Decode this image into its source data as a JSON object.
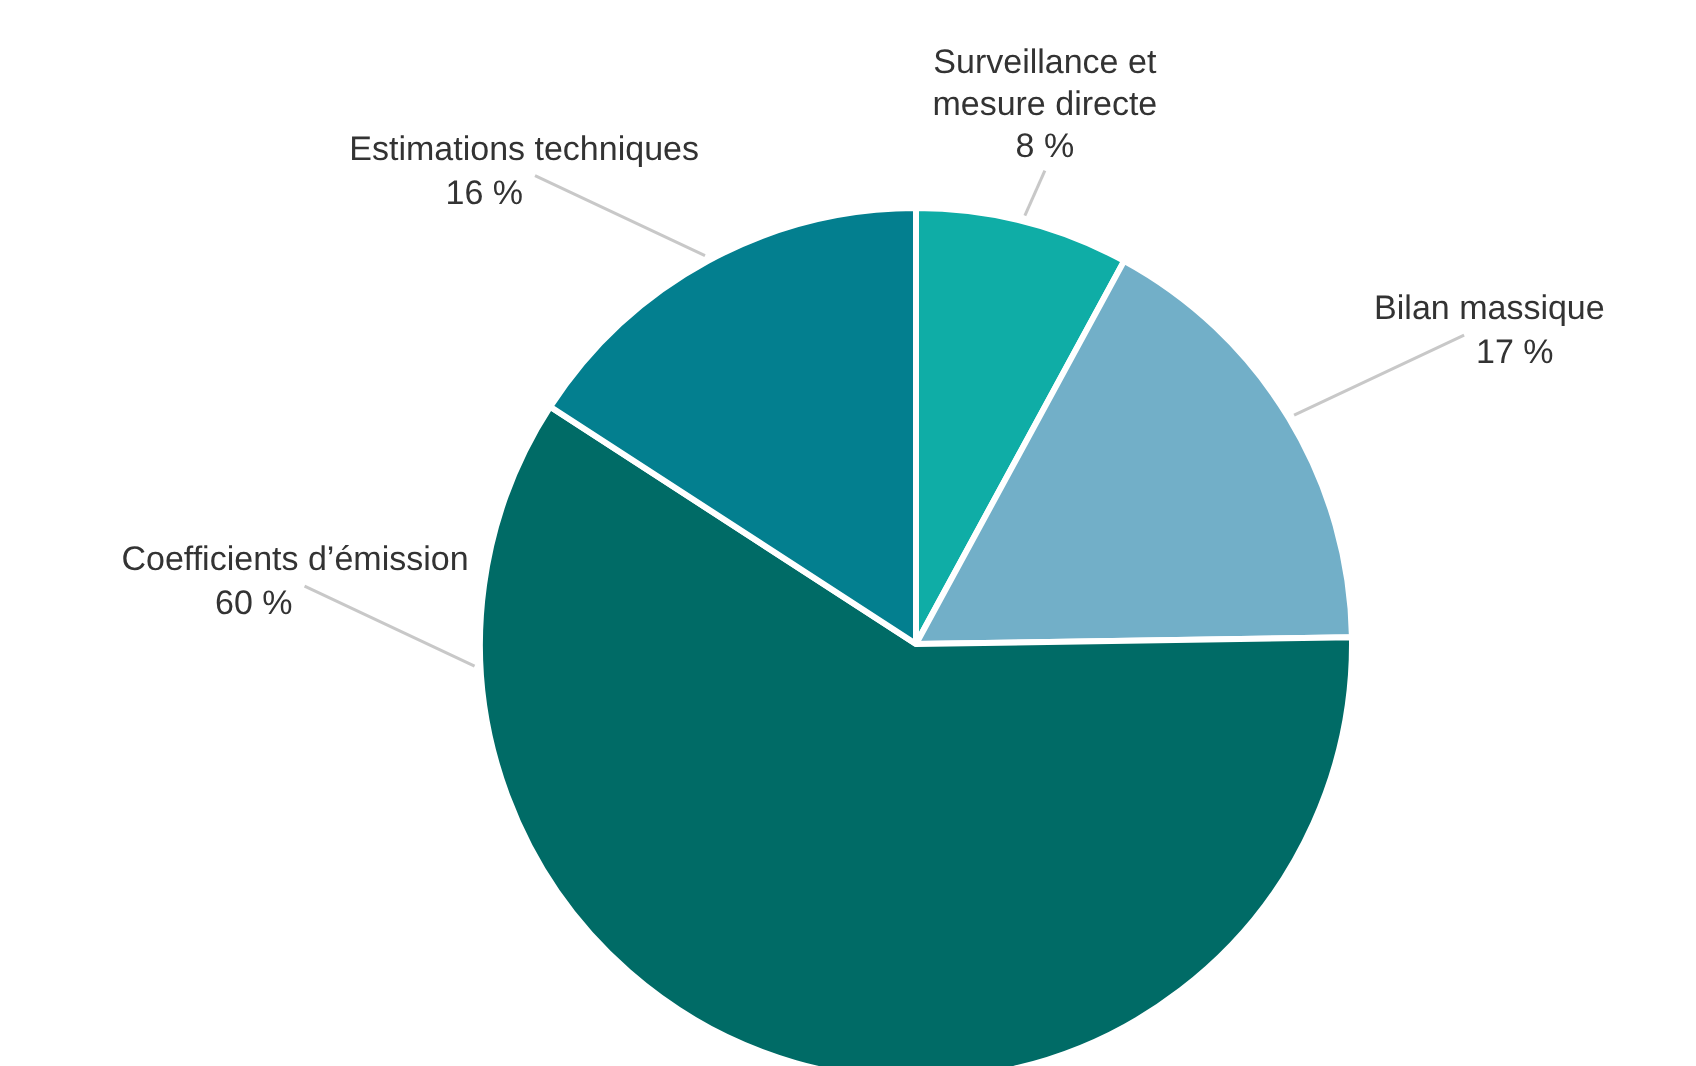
{
  "chart_data": {
    "type": "pie",
    "categories": [
      "Surveillance et mesure directe",
      "Bilan massique",
      "Coefficients d’émission",
      "Estimations techniques"
    ],
    "values": [
      8,
      17,
      60,
      16
    ],
    "value_labels": [
      "8 %",
      "17 %",
      "60 %",
      "16 %"
    ],
    "colors": [
      "#0fada6",
      "#72afc8",
      "#006b66",
      "#037f8f"
    ]
  }
}
